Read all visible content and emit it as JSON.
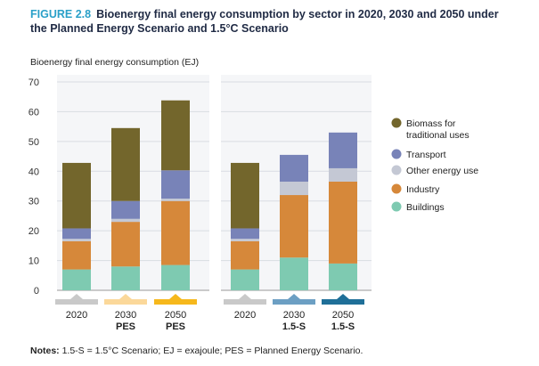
{
  "figure": {
    "label": "FIGURE 2.8",
    "title": "Bioenergy final energy consumption by sector in 2020, 2030 and 2050 under",
    "subtitle": "the Planned Energy Scenario and 1.5°C Scenario"
  },
  "notes": {
    "prefix": "Notes:",
    "text": " 1.5-S = 1.5°C Scenario; EJ = exajoule; PES = Planned Energy Scenario."
  },
  "chart_data": {
    "type": "bar",
    "stacked": true,
    "ylabel": "Bioenergy final energy consumption (EJ)",
    "ylim": [
      0,
      70
    ],
    "yticks": [
      0,
      10,
      20,
      30,
      40,
      50,
      60,
      70
    ],
    "grid": true,
    "legend_position": "right",
    "groups": [
      {
        "name": "PES",
        "categories": [
          {
            "year": "2020",
            "scenario": "",
            "marker_color": "#c9c9c9"
          },
          {
            "year": "2030",
            "scenario": "PES",
            "marker_color": "#fbd89a"
          },
          {
            "year": "2050",
            "scenario": "PES",
            "marker_color": "#f6b81c"
          }
        ]
      },
      {
        "name": "1.5-S",
        "categories": [
          {
            "year": "2020",
            "scenario": "",
            "marker_color": "#c9c9c9"
          },
          {
            "year": "2030",
            "scenario": "1.5-S",
            "marker_color": "#6c9fc3"
          },
          {
            "year": "2050",
            "scenario": "1.5-S",
            "marker_color": "#1f6f98"
          }
        ]
      }
    ],
    "series": [
      {
        "name": "Buildings",
        "color": "#7ecab1",
        "values": [
          7,
          8,
          8.5,
          7,
          11,
          9
        ]
      },
      {
        "name": "Industry",
        "color": "#d6883a",
        "values": [
          9.5,
          15,
          21.5,
          9.5,
          21,
          27.5
        ]
      },
      {
        "name": "Other energy use",
        "color": "#c4c8d4",
        "values": [
          0.8,
          1,
          0.8,
          0.8,
          4.5,
          4.5
        ]
      },
      {
        "name": "Transport",
        "color": "#7883b8",
        "values": [
          3.5,
          6,
          9.5,
          3.5,
          9,
          12
        ]
      },
      {
        "name": "Biomass for traditional uses",
        "color": "#73662c",
        "values": [
          22,
          24.5,
          23.5,
          22,
          0,
          0
        ]
      }
    ],
    "legend": [
      {
        "name": "Biomass for",
        "name2": "traditional uses",
        "color": "#73662c"
      },
      {
        "name": "Transport",
        "name2": "",
        "color": "#7883b8"
      },
      {
        "name": "Other energy use",
        "name2": "",
        "color": "#c4c8d4"
      },
      {
        "name": "Industry",
        "name2": "",
        "color": "#d6883a"
      },
      {
        "name": "Buildings",
        "name2": "",
        "color": "#7ecab1"
      }
    ]
  }
}
